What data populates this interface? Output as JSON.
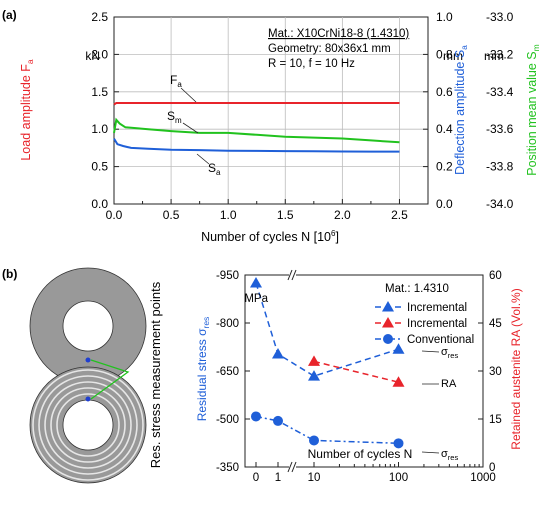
{
  "panel_a": {
    "label": "(a)",
    "info_lines": [
      "Mat.: X10CrNi18-8 (1.4310)",
      "Geometry: 80x36x1 mm",
      "R = 10, f = 10 Hz"
    ],
    "unit_left": "kN",
    "unit_mid": "mm",
    "unit_right": "mm",
    "series_labels": [
      {
        "base": "F",
        "sub": "a"
      },
      {
        "base": "S",
        "sub": "m"
      },
      {
        "base": "S",
        "sub": "a"
      }
    ]
  },
  "panel_b": {
    "label": "(b)",
    "side_label": "Res. stress measurement points",
    "legend_title": "Mat.: 1.4310",
    "legend_entries": [
      "Incremental",
      "Incremental",
      "Conventional"
    ],
    "unit_left": "MPa",
    "annotations": {
      "sigma_res_1": {
        "base": "σ",
        "sub": "res"
      },
      "ra": "RA",
      "sigma_res_2": {
        "base": "σ",
        "sub": "res"
      }
    }
  },
  "colors": {
    "red": "#e8242b",
    "green": "#21c21e",
    "blue": "#1f5fd8",
    "grey_disk": "#999999"
  },
  "chart_data": [
    {
      "type": "line",
      "x_label": {
        "text": "Number of cycles N [10",
        "sup": "6",
        "tail": "]"
      },
      "x_ticks": [
        "0.0",
        "0.5",
        "1.0",
        "1.5",
        "2.0",
        "2.5"
      ],
      "xlim": [
        0,
        2.75
      ],
      "y_axes": [
        {
          "label": {
            "base": "Load amplitude F",
            "sub": "a"
          },
          "ticks": [
            "0.0",
            "0.5",
            "1.0",
            "1.5",
            "2.0",
            "2.5"
          ],
          "lim": [
            0,
            2.5
          ],
          "color": "#e8242b"
        },
        {
          "label": {
            "base": "Deflection amplitude S",
            "sub": "a"
          },
          "ticks": [
            "0.0",
            "0.2",
            "0.4",
            "0.6",
            "0.8",
            "1.0"
          ],
          "lim": [
            0,
            1.0
          ],
          "color": "#1f5fd8"
        },
        {
          "label": {
            "base": "Position mean value S",
            "sub": "m"
          },
          "ticks": [
            "-34.0",
            "-33.8",
            "-33.6",
            "-33.4",
            "-33.2",
            "-33.0"
          ],
          "lim": [
            -34.0,
            -33.0
          ],
          "color": "#21c21e"
        }
      ],
      "series": [
        {
          "axis": 0,
          "color": "#e8242b",
          "x": [
            0,
            0.02,
            0.5,
            1.0,
            1.5,
            2.0,
            2.5
          ],
          "y": [
            1.33,
            1.35,
            1.35,
            1.35,
            1.35,
            1.35,
            1.35
          ]
        },
        {
          "axis": 2,
          "color": "#21c21e",
          "x": [
            0,
            0.02,
            0.05,
            0.1,
            0.3,
            0.5,
            0.75,
            1.0,
            1.25,
            1.5,
            1.75,
            2.0,
            2.25,
            2.5
          ],
          "y": [
            -33.62,
            -33.55,
            -33.57,
            -33.59,
            -33.6,
            -33.61,
            -33.62,
            -33.62,
            -33.63,
            -33.64,
            -33.645,
            -33.65,
            -33.66,
            -33.67
          ]
        },
        {
          "axis": 1,
          "color": "#1f5fd8",
          "x": [
            0,
            0.01,
            0.03,
            0.08,
            0.15,
            0.3,
            0.5,
            0.75,
            1.0,
            1.25,
            1.5,
            1.75,
            2.0,
            2.25,
            2.5
          ],
          "y": [
            0.35,
            0.34,
            0.32,
            0.31,
            0.3,
            0.295,
            0.29,
            0.288,
            0.285,
            0.284,
            0.283,
            0.282,
            0.281,
            0.28,
            0.28
          ]
        }
      ]
    },
    {
      "type": "line",
      "x_label": "Number of cycles N",
      "x_ticks": [
        "0",
        "1",
        "10",
        "100",
        "1000"
      ],
      "y_axes": [
        {
          "label": {
            "base": "Residual stress σ",
            "sub": "res"
          },
          "ticks": [
            "-950",
            "-800",
            "-650",
            "-500",
            "-350"
          ],
          "lim": [
            -350,
            -950
          ],
          "color": "#1f5fd8"
        },
        {
          "label": "Retained austenite RA (Vol.%)",
          "ticks": [
            "0",
            "15",
            "30",
            "45",
            "60"
          ],
          "lim": [
            0,
            60
          ],
          "color": "#e8242b"
        }
      ],
      "series": [
        {
          "name": "Incremental",
          "axis": 0,
          "marker": "triangle",
          "color": "#1f5fd8",
          "x": [
            0,
            1,
            10,
            100
          ],
          "y": [
            -925,
            -703,
            -634,
            -718
          ]
        },
        {
          "name": "Incremental",
          "axis": 1,
          "marker": "triangle",
          "color": "#e8242b",
          "x": [
            10,
            100
          ],
          "y": [
            33,
            26.5
          ]
        },
        {
          "name": "Conventional",
          "axis": 0,
          "marker": "circle",
          "color": "#1f5fd8",
          "x": [
            0,
            1,
            10,
            100
          ],
          "y": [
            -508,
            -494,
            -433,
            -424
          ]
        }
      ]
    }
  ]
}
